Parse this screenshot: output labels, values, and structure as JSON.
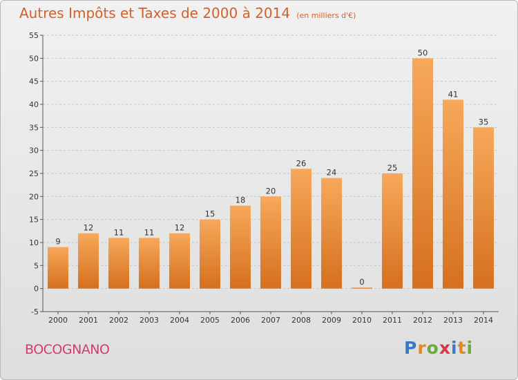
{
  "title": "Autres Impôts et Taxes de 2000 à 2014",
  "unit": "(en milliers d'€)",
  "commune": "BOCOGNANO",
  "logo": {
    "letters": [
      "P",
      "r",
      "o",
      "x",
      "i",
      "t",
      "i"
    ],
    "colors": [
      "#3b78c4",
      "#e08a22",
      "#6aac34",
      "#d9364a",
      "#3b78c4",
      "#e08a22",
      "#6aac34"
    ]
  },
  "colors": {
    "bar_top": "#f7a85a",
    "bar_bottom": "#d5701f",
    "title": "#d35f2b",
    "commune": "#d63a6b"
  },
  "chart_data": {
    "type": "bar",
    "title": "Autres Impôts et Taxes de 2000 à 2014",
    "subtitle": "(en milliers d'€)",
    "categories": [
      "2000",
      "2001",
      "2002",
      "2003",
      "2004",
      "2005",
      "2006",
      "2007",
      "2008",
      "2009",
      "2010",
      "2011",
      "2012",
      "2013",
      "2014"
    ],
    "values": [
      9,
      12,
      11,
      11,
      12,
      15,
      18,
      20,
      26,
      24,
      0,
      25,
      50,
      41,
      35
    ],
    "xlabel": "",
    "ylabel": "",
    "ylim": [
      -5,
      55
    ],
    "yticks": [
      -5,
      0,
      5,
      10,
      15,
      20,
      25,
      30,
      35,
      40,
      45,
      50,
      55
    ],
    "grid": "horizontal dashed"
  }
}
